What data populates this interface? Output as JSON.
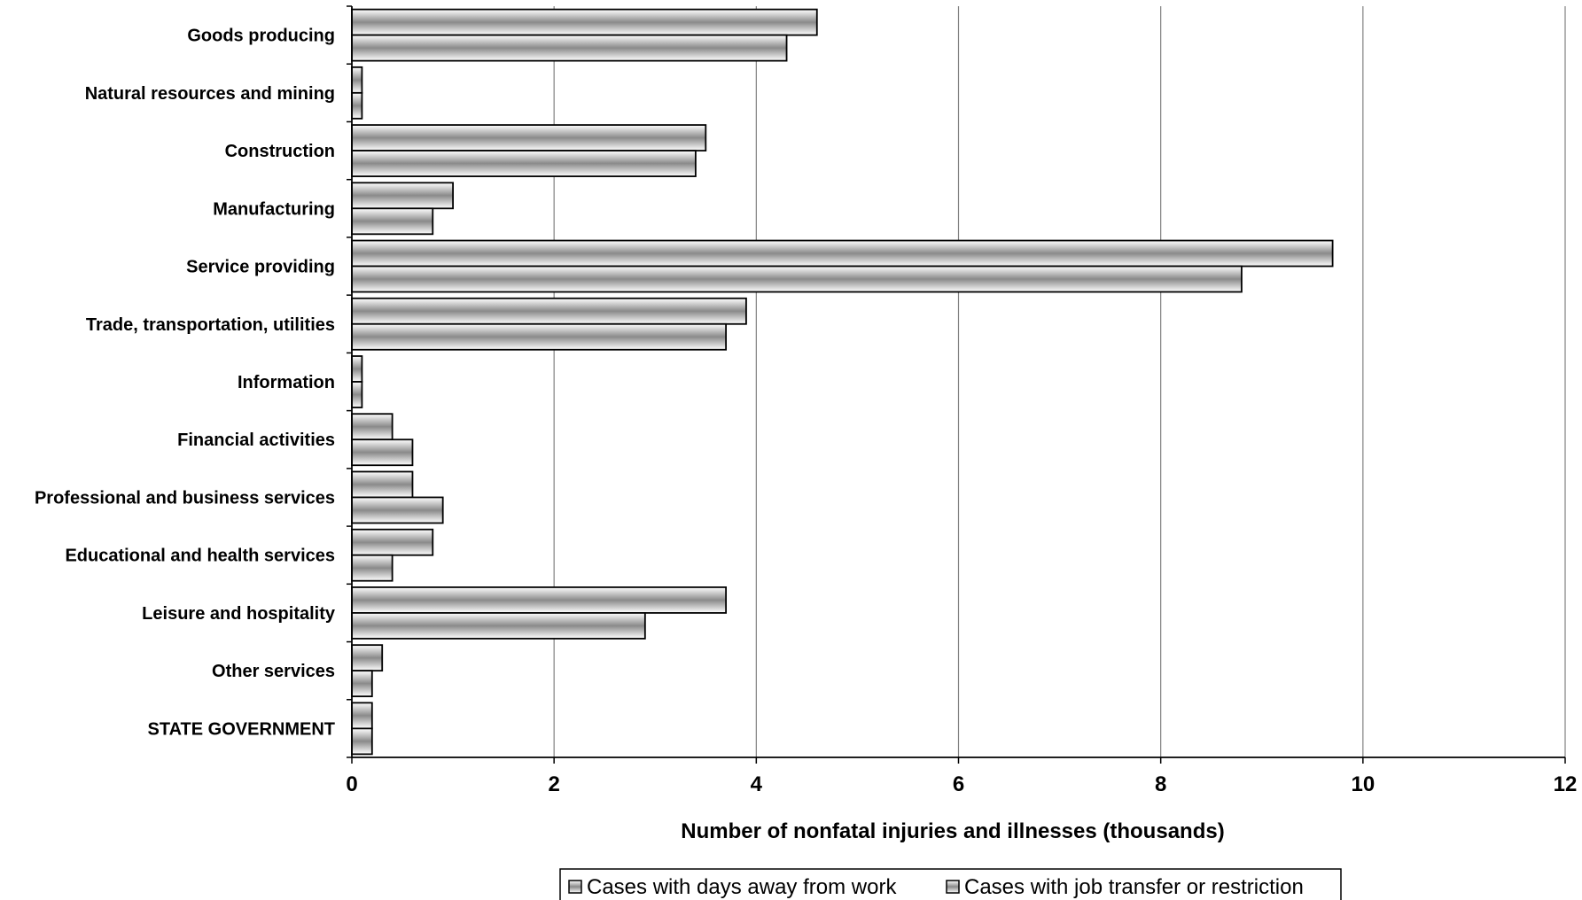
{
  "chart_data": {
    "type": "bar",
    "orientation": "horizontal",
    "categories": [
      "Goods producing",
      "Natural resources and mining",
      "Construction",
      "Manufacturing",
      "Service providing",
      "Trade, transportation, utilities",
      "Information",
      "Financial activities",
      "Professional and business services",
      "Educational and health services",
      "Leisure and hospitality",
      "Other services",
      "STATE GOVERNMENT"
    ],
    "series": [
      {
        "name": "Cases with days away from work",
        "values": [
          4.6,
          0.1,
          3.5,
          1.0,
          9.7,
          3.9,
          0.1,
          0.4,
          0.6,
          0.8,
          3.7,
          0.3,
          0.2
        ]
      },
      {
        "name": "Cases with job transfer or restriction",
        "values": [
          4.3,
          0.1,
          3.4,
          0.8,
          8.8,
          3.7,
          0.1,
          0.6,
          0.9,
          0.4,
          2.9,
          0.2,
          0.2
        ]
      }
    ],
    "xlabel": "Number of nonfatal injuries and illnesses (thousands)",
    "ylabel": "",
    "title": "",
    "xlim": [
      0,
      12
    ],
    "xticks": [
      "0",
      "2",
      "4",
      "6",
      "8",
      "10",
      "12"
    ],
    "grid": "vertical",
    "legend_position": "bottom-center"
  }
}
